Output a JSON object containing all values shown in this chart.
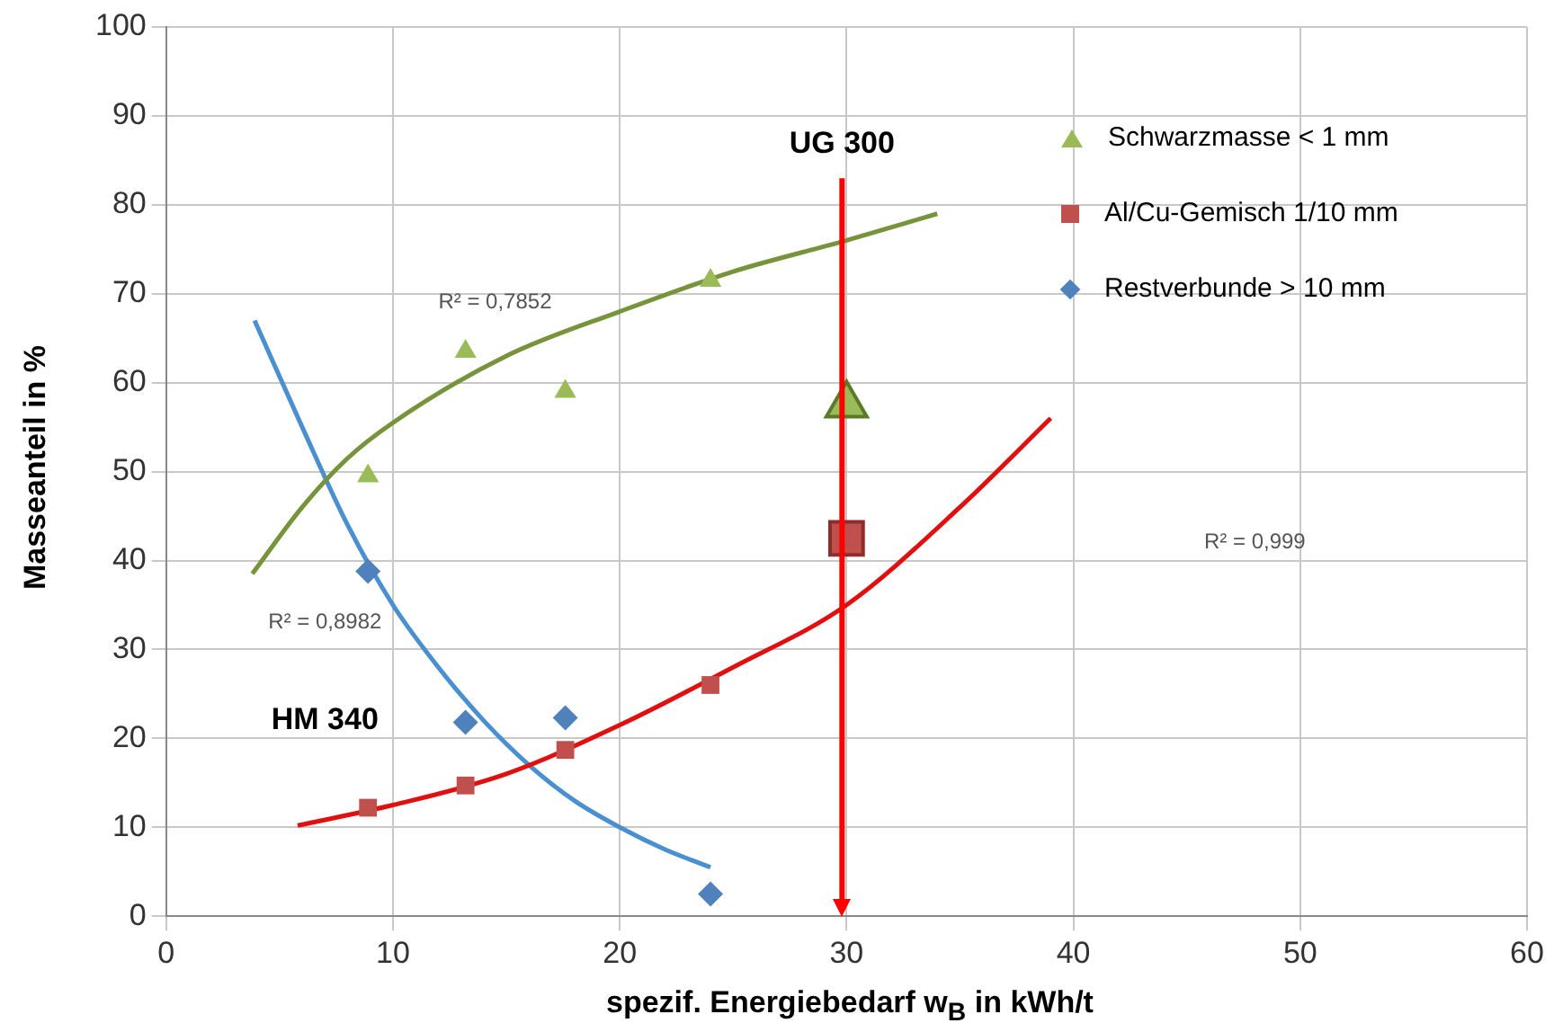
{
  "chart_data": {
    "type": "scatter",
    "xlabel": "spezif. Energiebedarf w$_{B}$ in kWh/t",
    "ylabel": "Masseanteil in %",
    "xlim": [
      0,
      60
    ],
    "xticks": [
      0,
      10,
      20,
      30,
      40,
      50,
      60
    ],
    "ylim": [
      0,
      100
    ],
    "yticks": [
      0,
      10,
      20,
      30,
      40,
      50,
      60,
      70,
      80,
      90,
      100
    ],
    "grid": true,
    "legend": "top right",
    "series": [
      {
        "name": "Schwarzmasse < 1 mm",
        "type": "scatter",
        "marker": "triangle",
        "color": "#9bbb59",
        "x": [
          8.9,
          13.2,
          17.6,
          24
        ],
        "values": [
          49.5,
          63.5,
          59,
          71.5
        ]
      },
      {
        "name": "Al/Cu-Gemisch 1/10 mm",
        "type": "scatter",
        "marker": "square",
        "color": "#c0504d",
        "x": [
          8.9,
          13.2,
          17.6,
          24
        ],
        "values": [
          12.2,
          14.7,
          18.7,
          26
        ]
      },
      {
        "name": "Restverbunde > 10 mm",
        "type": "scatter",
        "marker": "diamond",
        "color": "#4f81bd",
        "x": [
          8.9,
          13.2,
          17.6,
          24
        ],
        "values": [
          38.8,
          21.8,
          22.3,
          2.5
        ]
      },
      {
        "type": "scatter",
        "marker": "triangle",
        "color": "#9bbb59",
        "x": [
          30
        ],
        "values": [
          57.5
        ]
      },
      {
        "type": "scatter",
        "marker": "square",
        "color": "#c0504d",
        "x": [
          30
        ],
        "values": [
          42.5
        ]
      },
      {
        "type": "line",
        "marker": "none",
        "color": "#77933c",
        "x": [
          3.8,
          6,
          8,
          10,
          15,
          20,
          25,
          30,
          34
        ],
        "values": [
          38.5,
          46,
          51.5,
          55.5,
          63,
          68,
          72.5,
          76,
          79
        ]
      },
      {
        "type": "line",
        "marker": "none",
        "color": "#e01010",
        "x": [
          5.8,
          10,
          15,
          20,
          25,
          30,
          35,
          39
        ],
        "values": [
          10.2,
          12.5,
          16,
          21.5,
          28,
          35,
          46,
          56
        ]
      },
      {
        "type": "line",
        "marker": "none",
        "color": "#4a90d0",
        "x": [
          3.9,
          6,
          8,
          10,
          12,
          14,
          16,
          18,
          20,
          22,
          24
        ],
        "values": [
          67,
          55,
          44,
          35,
          28,
          22,
          17,
          13,
          10,
          7.5,
          5.5
        ]
      }
    ],
    "ref_lines": [
      {
        "axis": "x",
        "value": 29.8,
        "label": "UG 300",
        "color": "#ff0000"
      }
    ],
    "annotations": [
      "R² = 0,7852",
      "R² = 0,999",
      "R² = 0,8982",
      "HM 340"
    ]
  }
}
